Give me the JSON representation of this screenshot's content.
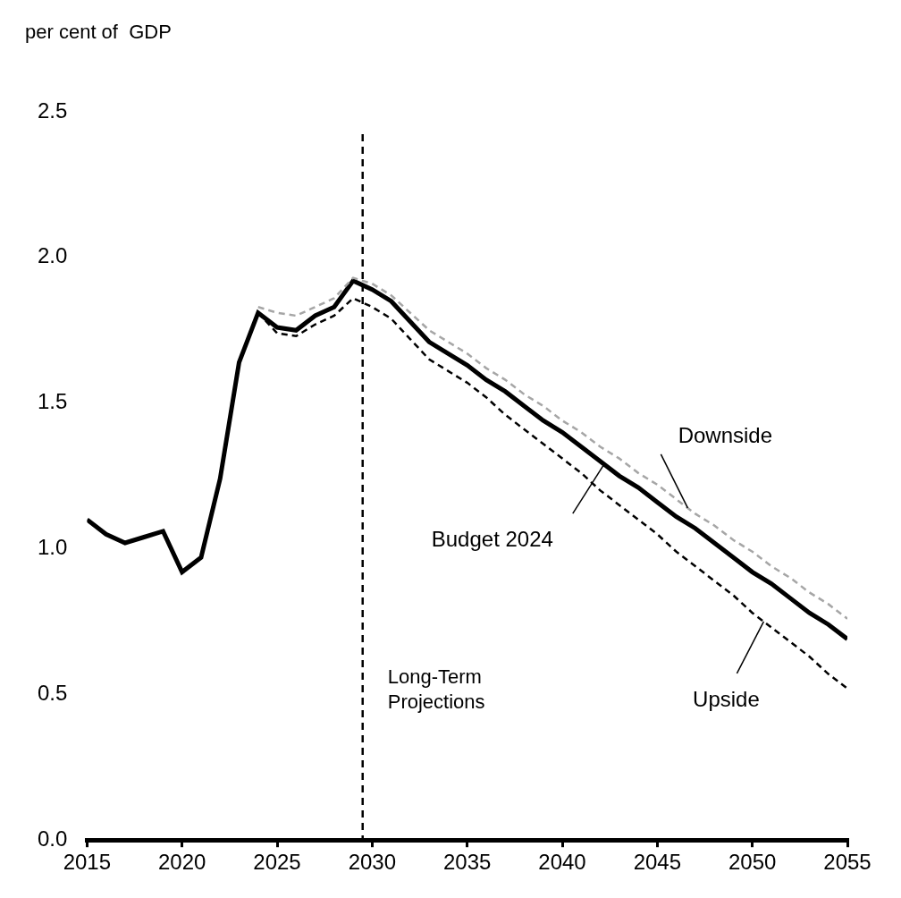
{
  "chart_data": {
    "type": "line",
    "y_label": "per cent of  GDP",
    "x": [
      2015,
      2016,
      2017,
      2018,
      2019,
      2020,
      2021,
      2022,
      2023,
      2024,
      2025,
      2026,
      2027,
      2028,
      2029,
      2030,
      2031,
      2032,
      2033,
      2034,
      2035,
      2036,
      2037,
      2038,
      2039,
      2040,
      2041,
      2042,
      2043,
      2044,
      2045,
      2046,
      2047,
      2048,
      2049,
      2050,
      2051,
      2052,
      2053,
      2054,
      2055
    ],
    "xlim": [
      2015,
      2055
    ],
    "xticks": [
      2015,
      2020,
      2025,
      2030,
      2035,
      2040,
      2045,
      2050,
      2055
    ],
    "ylim": [
      0,
      2.5
    ],
    "yticks": [
      {
        "value": 0,
        "label": "0.0"
      },
      {
        "value": 0.5,
        "label": "0.5"
      },
      {
        "value": 1,
        "label": "1.0"
      },
      {
        "value": 1.5,
        "label": "1.5"
      },
      {
        "value": 2,
        "label": "2.0"
      },
      {
        "value": 2.5,
        "label": "2.5"
      }
    ],
    "grid": false,
    "series": [
      {
        "name": "Downside",
        "color": "#a6a6a6",
        "line_style": "dashed",
        "values": [
          null,
          null,
          null,
          null,
          null,
          null,
          null,
          null,
          null,
          1.83,
          1.81,
          1.8,
          1.83,
          1.86,
          1.93,
          1.91,
          1.87,
          1.81,
          1.75,
          1.71,
          1.67,
          1.62,
          1.58,
          1.53,
          1.49,
          1.44,
          1.4,
          1.35,
          1.31,
          1.26,
          1.22,
          1.17,
          1.12,
          1.08,
          1.03,
          0.99,
          0.94,
          0.9,
          0.85,
          0.81,
          0.76
        ]
      },
      {
        "name": "Upside",
        "color": "#000000",
        "line_style": "dashed",
        "values": [
          null,
          null,
          null,
          null,
          null,
          null,
          null,
          null,
          null,
          1.81,
          1.74,
          1.73,
          1.77,
          1.8,
          1.86,
          1.83,
          1.79,
          1.72,
          1.65,
          1.61,
          1.57,
          1.52,
          1.46,
          1.41,
          1.36,
          1.31,
          1.26,
          1.2,
          1.15,
          1.1,
          1.05,
          0.99,
          0.94,
          0.89,
          0.84,
          0.78,
          0.73,
          0.68,
          0.63,
          0.57,
          0.52
        ]
      },
      {
        "name": "Budget 2024",
        "color": "#000000",
        "line_style": "solid",
        "values": [
          1.1,
          1.05,
          1.02,
          1.04,
          1.06,
          0.92,
          0.97,
          1.24,
          1.64,
          1.81,
          1.76,
          1.75,
          1.8,
          1.83,
          1.92,
          1.89,
          1.85,
          1.78,
          1.71,
          1.67,
          1.63,
          1.58,
          1.54,
          1.49,
          1.44,
          1.4,
          1.35,
          1.3,
          1.25,
          1.21,
          1.16,
          1.11,
          1.07,
          1.02,
          0.97,
          0.92,
          0.88,
          0.83,
          0.78,
          0.74,
          0.69
        ]
      }
    ],
    "annotations": [
      {
        "text": "Long-Term Projections",
        "x": 2029.5
      }
    ]
  }
}
